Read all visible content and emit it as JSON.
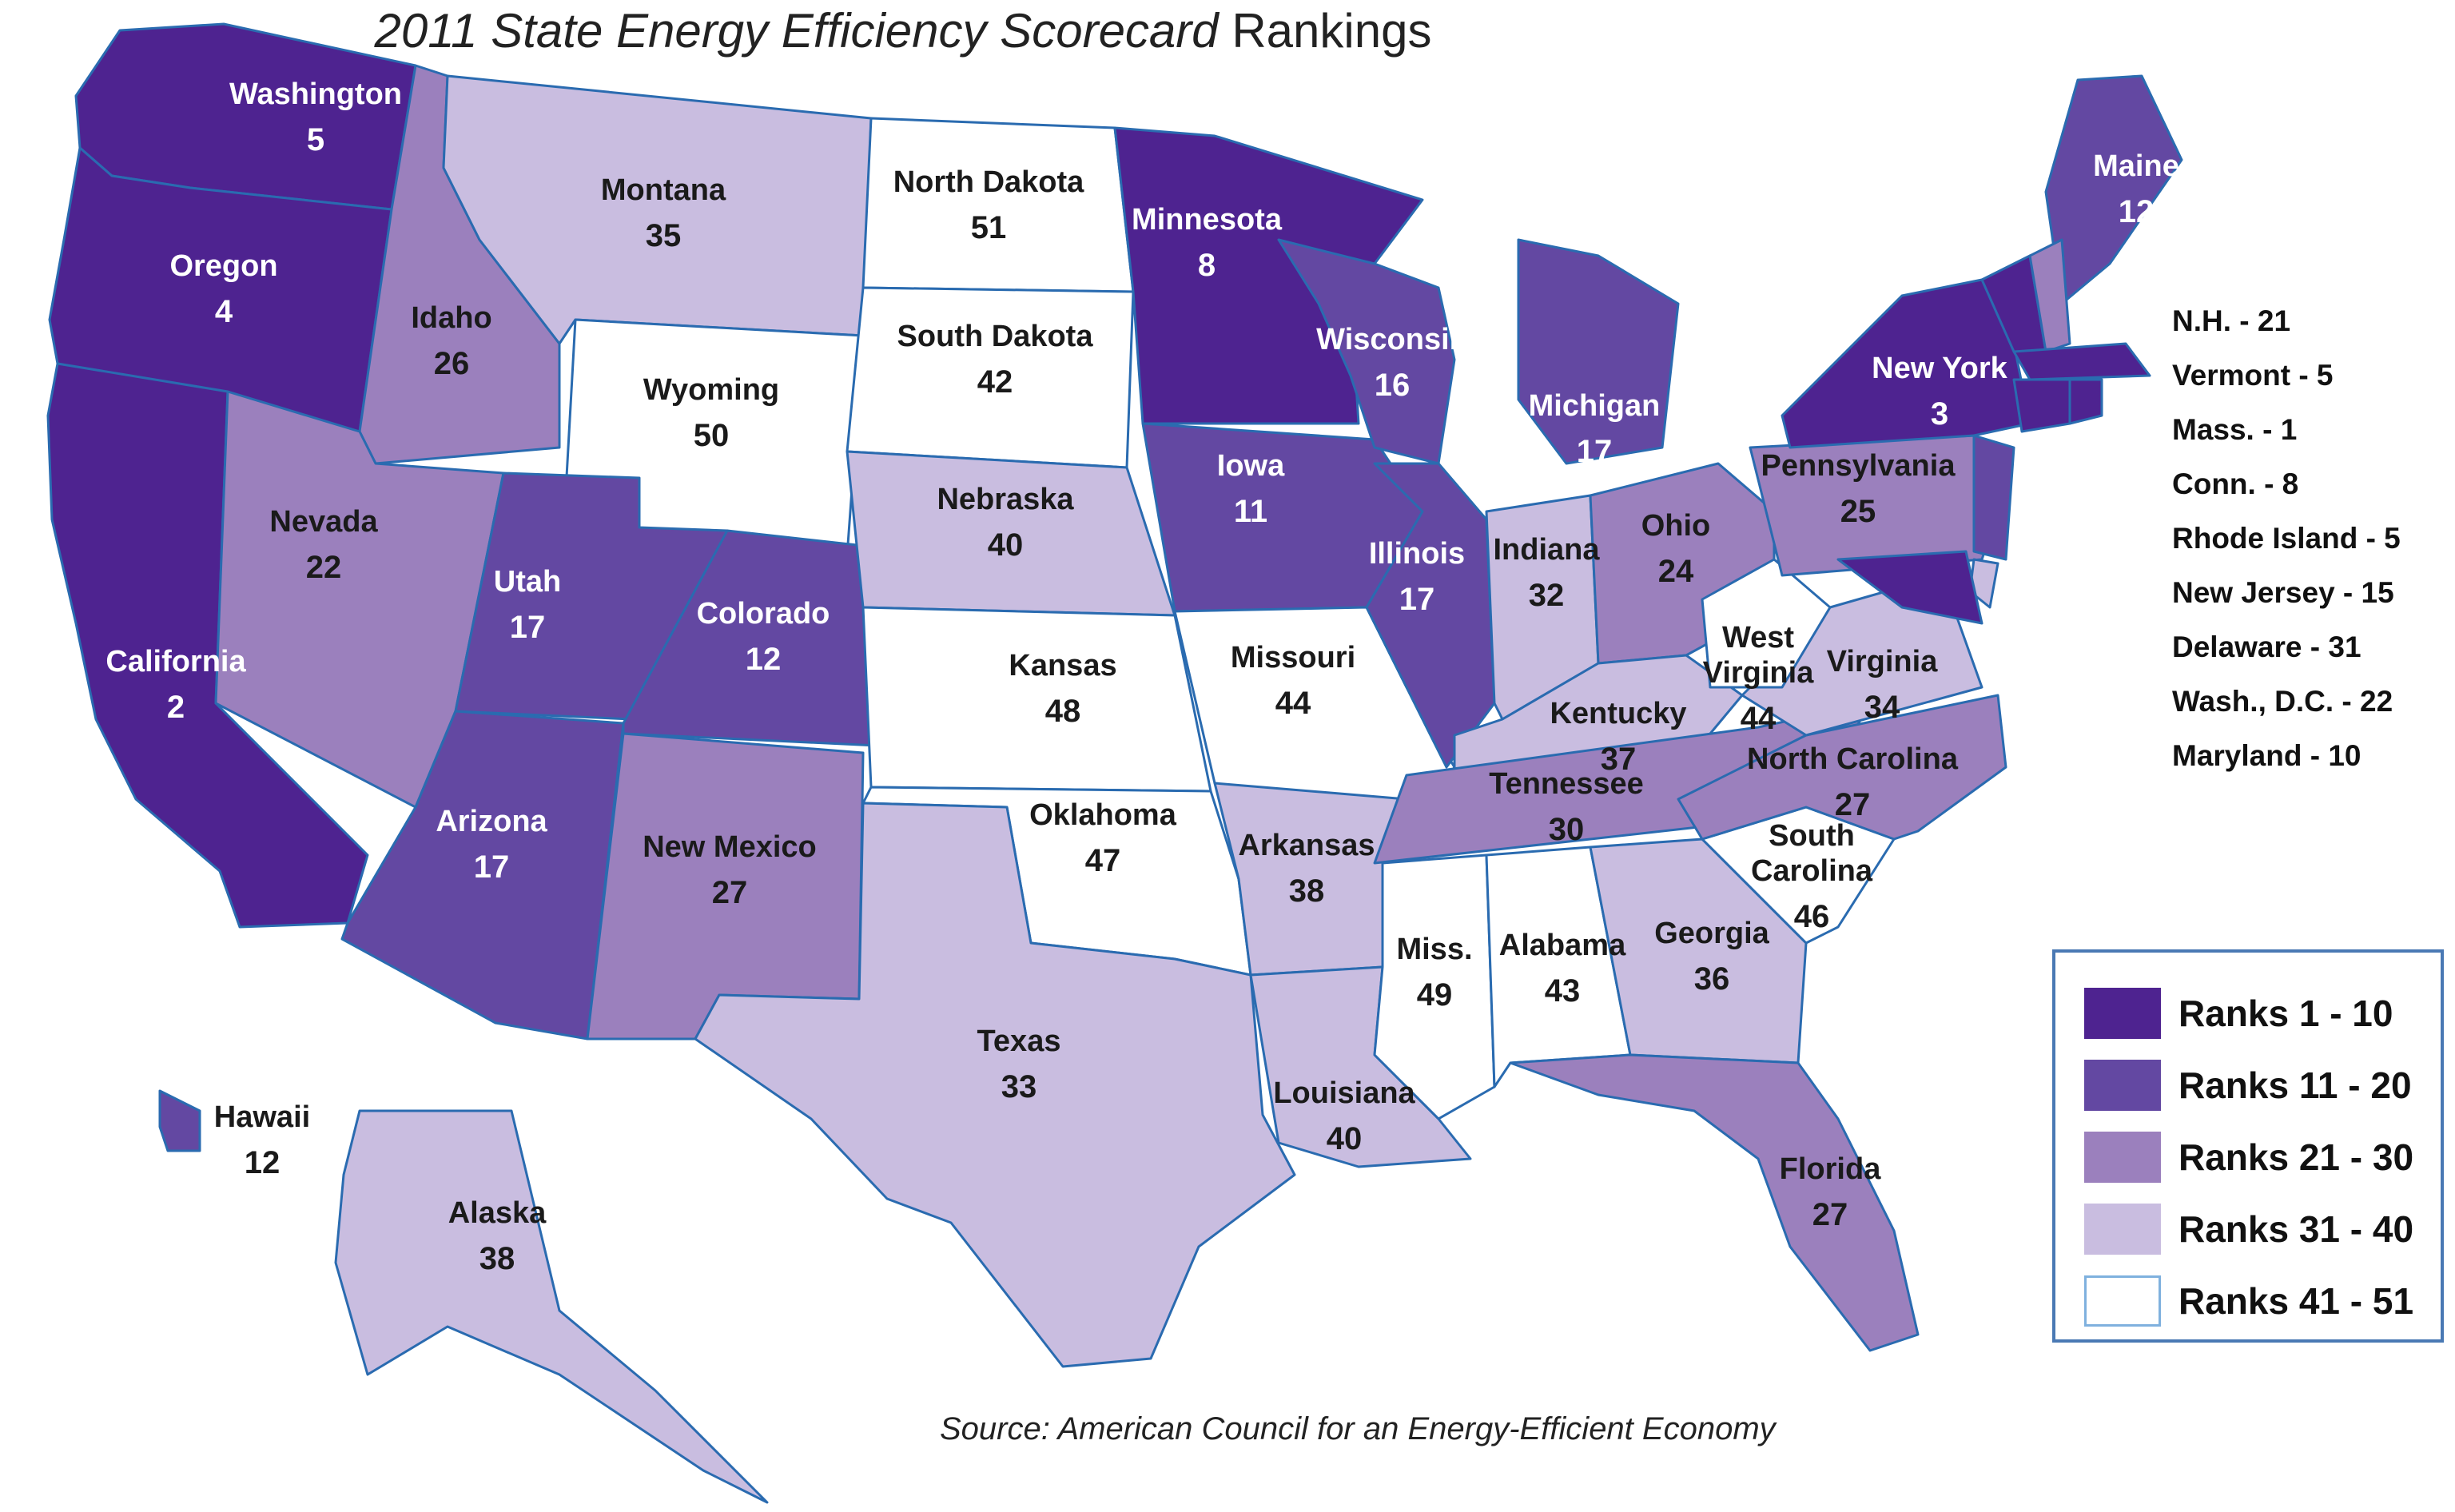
{
  "title": {
    "italic": "2011 State Energy Efficiency Scorecard",
    "plain": "Rankings"
  },
  "source": "Source: American Council for an Energy-Efficient Economy",
  "colors": {
    "tier1": "#4e2390",
    "tier2": "#6348a2",
    "tier3": "#9b80bd",
    "tier4": "#c9bde0",
    "tier5": "#ffffff",
    "border": "#2a6bb0",
    "water": "#ffffff"
  },
  "legend": [
    {
      "label": "Ranks 1 - 10",
      "tier": "tier1"
    },
    {
      "label": "Ranks 11 - 20",
      "tier": "tier2"
    },
    {
      "label": "Ranks 21 - 30",
      "tier": "tier3"
    },
    {
      "label": "Ranks 31 - 40",
      "tier": "tier4"
    },
    {
      "label": "Ranks 41 - 51",
      "tier": "tier5"
    }
  ],
  "small_states": [
    "N.H. - 21",
    "Vermont - 5",
    "Mass. - 1",
    "Conn. - 8",
    "Rhode Island - 5",
    "New Jersey - 15",
    "Delaware - 31",
    "Wash., D.C. - 22",
    "Maryland - 10"
  ],
  "states": [
    {
      "id": "WA",
      "name": "Washington",
      "rank": "5"
    },
    {
      "id": "OR",
      "name": "Oregon",
      "rank": "4"
    },
    {
      "id": "CA",
      "name": "California",
      "rank": "2"
    },
    {
      "id": "ID",
      "name": "Idaho",
      "rank": "26"
    },
    {
      "id": "NV",
      "name": "Nevada",
      "rank": "22"
    },
    {
      "id": "MT",
      "name": "Montana",
      "rank": "35"
    },
    {
      "id": "WY",
      "name": "Wyoming",
      "rank": "50"
    },
    {
      "id": "UT",
      "name": "Utah",
      "rank": "17"
    },
    {
      "id": "AZ",
      "name": "Arizona",
      "rank": "17"
    },
    {
      "id": "CO",
      "name": "Colorado",
      "rank": "12"
    },
    {
      "id": "NM",
      "name": "New Mexico",
      "rank": "27"
    },
    {
      "id": "ND",
      "name": "North Dakota",
      "rank": "51"
    },
    {
      "id": "SD",
      "name": "South Dakota",
      "rank": "42"
    },
    {
      "id": "NE",
      "name": "Nebraska",
      "rank": "40"
    },
    {
      "id": "KS",
      "name": "Kansas",
      "rank": "48"
    },
    {
      "id": "OK",
      "name": "Oklahoma",
      "rank": "47"
    },
    {
      "id": "TX",
      "name": "Texas",
      "rank": "33"
    },
    {
      "id": "MN",
      "name": "Minnesota",
      "rank": "8"
    },
    {
      "id": "IA",
      "name": "Iowa",
      "rank": "11"
    },
    {
      "id": "MO",
      "name": "Missouri",
      "rank": "44"
    },
    {
      "id": "AR",
      "name": "Arkansas",
      "rank": "38"
    },
    {
      "id": "LA",
      "name": "Louisiana",
      "rank": "40"
    },
    {
      "id": "WI",
      "name": "Wisconsin",
      "rank": "16"
    },
    {
      "id": "IL",
      "name": "Illinois",
      "rank": "17"
    },
    {
      "id": "MI",
      "name": "Michigan",
      "rank": "17"
    },
    {
      "id": "IN",
      "name": "Indiana",
      "rank": "32"
    },
    {
      "id": "OH",
      "name": "Ohio",
      "rank": "24"
    },
    {
      "id": "KY",
      "name": "Kentucky",
      "rank": "37"
    },
    {
      "id": "TN",
      "name": "Tennessee",
      "rank": "30"
    },
    {
      "id": "MS",
      "name": "Miss.",
      "rank": "49"
    },
    {
      "id": "AL",
      "name": "Alabama",
      "rank": "43"
    },
    {
      "id": "GA",
      "name": "Georgia",
      "rank": "36"
    },
    {
      "id": "FL",
      "name": "Florida",
      "rank": "27"
    },
    {
      "id": "SC",
      "name": "South Carolina",
      "rank": "46"
    },
    {
      "id": "NC",
      "name": "North Carolina",
      "rank": "27"
    },
    {
      "id": "VA",
      "name": "Virginia",
      "rank": "34"
    },
    {
      "id": "WV",
      "name": "West Virginia",
      "rank": "44"
    },
    {
      "id": "PA",
      "name": "Pennsylvania",
      "rank": "25"
    },
    {
      "id": "NY",
      "name": "New York",
      "rank": "3"
    },
    {
      "id": "ME",
      "name": "Maine",
      "rank": "12"
    },
    {
      "id": "AK",
      "name": "Alaska",
      "rank": "38"
    },
    {
      "id": "HI",
      "name": "Hawaii",
      "rank": "12"
    },
    {
      "id": "VT",
      "name": "Vermont",
      "rank": "5"
    },
    {
      "id": "NH",
      "name": "N.H.",
      "rank": "21"
    },
    {
      "id": "MA",
      "name": "Mass.",
      "rank": "1"
    },
    {
      "id": "CT",
      "name": "Conn.",
      "rank": "8"
    },
    {
      "id": "RI",
      "name": "Rhode Island",
      "rank": "5"
    },
    {
      "id": "NJ",
      "name": "New Jersey",
      "rank": "15"
    },
    {
      "id": "DE",
      "name": "Delaware",
      "rank": "31"
    },
    {
      "id": "MD",
      "name": "Maryland",
      "rank": "10"
    }
  ]
}
